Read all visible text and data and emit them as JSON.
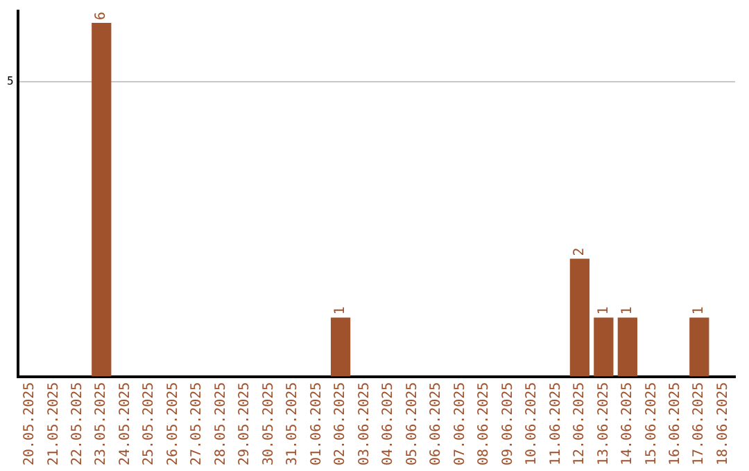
{
  "chart_data": {
    "type": "bar",
    "categories": [
      "20.05.2025",
      "21.05.2025",
      "22.05.2025",
      "23.05.2025",
      "24.05.2025",
      "25.05.2025",
      "26.05.2025",
      "27.05.2025",
      "28.05.2025",
      "29.05.2025",
      "30.05.2025",
      "31.05.2025",
      "01.06.2025",
      "02.06.2025",
      "03.06.2025",
      "04.06.2025",
      "05.06.2025",
      "06.06.2025",
      "07.06.2025",
      "08.06.2025",
      "09.06.2025",
      "10.06.2025",
      "11.06.2025",
      "12.06.2025",
      "13.06.2025",
      "14.06.2025",
      "15.06.2025",
      "16.06.2025",
      "17.06.2025",
      "18.06.2025"
    ],
    "values": [
      0,
      0,
      0,
      6,
      0,
      0,
      0,
      0,
      0,
      0,
      0,
      0,
      0,
      1,
      0,
      0,
      0,
      0,
      0,
      0,
      0,
      0,
      0,
      2,
      1,
      1,
      0,
      0,
      1,
      0
    ],
    "value_labels": [
      null,
      null,
      null,
      "6",
      null,
      null,
      null,
      null,
      null,
      null,
      null,
      null,
      null,
      "1",
      null,
      null,
      null,
      null,
      null,
      null,
      null,
      null,
      null,
      "2",
      "1",
      "1",
      null,
      null,
      "1",
      null
    ],
    "color": "#a0522d",
    "ylim": [
      0,
      6.2
    ],
    "yticks": [
      5
    ],
    "grid": "y"
  }
}
